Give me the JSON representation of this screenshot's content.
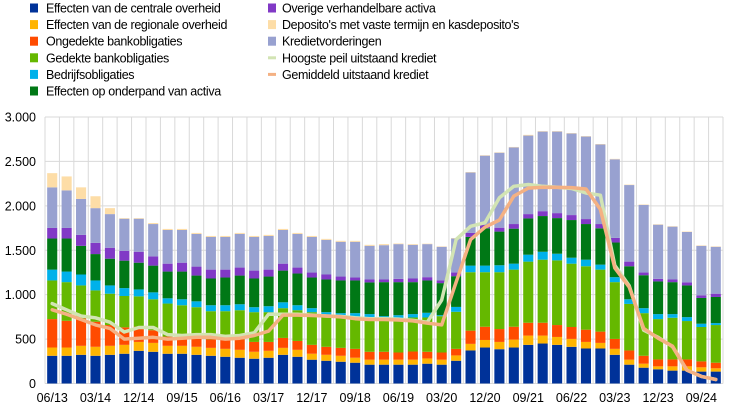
{
  "chart_data": {
    "type": "bar",
    "stacked": true,
    "title": "",
    "xlabel": "",
    "ylabel": "",
    "ylim": [
      0,
      3000
    ],
    "yticks": [
      0,
      500,
      1000,
      1500,
      2000,
      2500,
      3000
    ],
    "ytick_labels": [
      "0",
      "500",
      "1.000",
      "1.500",
      "2.000",
      "2.500",
      "3.000"
    ],
    "grid": true,
    "legend_placement": "top",
    "categories": [
      "06/13",
      "09/13",
      "12/13",
      "03/14",
      "06/14",
      "09/14",
      "12/14",
      "03/15",
      "06/15",
      "09/15",
      "12/15",
      "03/16",
      "06/16",
      "09/16",
      "12/16",
      "03/17",
      "06/17",
      "09/17",
      "12/17",
      "03/18",
      "06/18",
      "09/18",
      "12/18",
      "03/19",
      "06/19",
      "09/19",
      "12/19",
      "03/20",
      "06/20",
      "09/20",
      "12/20",
      "03/21",
      "06/21",
      "09/21",
      "12/21",
      "03/22",
      "06/22",
      "09/22",
      "12/22",
      "03/23",
      "06/23",
      "09/23",
      "12/23",
      "03/24",
      "06/24",
      "09/24",
      "12/24"
    ],
    "xtick_labels": [
      "06/13",
      "03/14",
      "12/14",
      "09/15",
      "06/16",
      "03/17",
      "12/17",
      "09/18",
      "06/19",
      "03/20",
      "12/20",
      "09/21",
      "06/22",
      "03/23",
      "12/23",
      "09/24"
    ],
    "series": [
      {
        "name": "Effecten van de centrale overheid",
        "color": "#003299",
        "values": [
          312,
          312,
          323,
          312,
          323,
          335,
          368,
          357,
          335,
          335,
          323,
          312,
          301,
          290,
          279,
          290,
          323,
          301,
          268,
          256,
          245,
          234,
          212,
          212,
          212,
          212,
          223,
          212,
          256,
          372,
          405,
          386,
          405,
          435,
          450,
          435,
          413,
          394,
          394,
          323,
          212,
          178,
          160,
          145,
          145,
          134,
          134
        ]
      },
      {
        "name": "Effecten van de regionale overheid",
        "color": "#FFB400",
        "values": [
          93,
          93,
          101,
          101,
          101,
          100,
          100,
          100,
          89,
          89,
          90,
          89,
          89,
          89,
          78,
          78,
          78,
          78,
          67,
          67,
          67,
          56,
          56,
          56,
          56,
          56,
          59,
          56,
          60,
          74,
          85,
          82,
          89,
          104,
          89,
          89,
          89,
          74,
          63,
          67,
          56,
          45,
          33,
          48,
          48,
          48,
          37
        ]
      },
      {
        "name": "Ongedekte bankobligaties",
        "color": "#FF4B00",
        "values": [
          320,
          301,
          308,
          282,
          234,
          197,
          172,
          143,
          104,
          96,
          107,
          97,
          108,
          119,
          111,
          100,
          112,
          100,
          100,
          90,
          89,
          100,
          89,
          89,
          81,
          92,
          75,
          81,
          74,
          149,
          149,
          145,
          145,
          145,
          145,
          134,
          134,
          138,
          127,
          112,
          104,
          89,
          78,
          78,
          78,
          67,
          63
        ]
      },
      {
        "name": "Gedekte bankobligaties",
        "color": "#65B800",
        "values": [
          435,
          435,
          372,
          353,
          353,
          353,
          341,
          348,
          372,
          361,
          339,
          316,
          316,
          327,
          335,
          335,
          335,
          346,
          368,
          356,
          357,
          357,
          379,
          357,
          365,
          383,
          386,
          409,
          417,
          658,
          614,
          640,
          643,
          688,
          710,
          728,
          713,
          714,
          698,
          639,
          524,
          480,
          454,
          469,
          432,
          387,
          424
        ]
      },
      {
        "name": "Bedrijfsobligaties",
        "color": "#00B1EA",
        "values": [
          122,
          119,
          123,
          112,
          93,
          89,
          78,
          78,
          59,
          67,
          66,
          67,
          67,
          67,
          56,
          67,
          66,
          56,
          45,
          34,
          34,
          45,
          45,
          44,
          55,
          38,
          53,
          11,
          55,
          74,
          74,
          78,
          67,
          78,
          89,
          75,
          67,
          74,
          56,
          56,
          52,
          56,
          56,
          41,
          44,
          37,
          22
        ]
      },
      {
        "name": "Effecten op onderpand van activa",
        "color": "#007816",
        "values": [
          350,
          372,
          323,
          297,
          301,
          309,
          301,
          301,
          301,
          312,
          290,
          301,
          312,
          323,
          323,
          334,
          357,
          357,
          345,
          368,
          368,
          368,
          357,
          383,
          372,
          360,
          364,
          361,
          346,
          323,
          420,
          379,
          394,
          408,
          402,
          401,
          424,
          401,
          409,
          390,
          372,
          371,
          368,
          360,
          357,
          290,
          294
        ]
      },
      {
        "name": "Overige verhandelbare activa",
        "color": "#8139C6",
        "values": [
          119,
          119,
          123,
          126,
          123,
          111,
          123,
          104,
          89,
          100,
          101,
          100,
          89,
          90,
          89,
          78,
          78,
          67,
          56,
          56,
          44,
          33,
          33,
          30,
          37,
          41,
          37,
          30,
          41,
          45,
          37,
          44,
          52,
          49,
          55,
          56,
          56,
          56,
          48,
          52,
          52,
          30,
          29,
          30,
          34,
          30,
          37
        ]
      },
      {
        "name": "Kredietvorderingen",
        "color": "#98A1D0",
        "values": [
          457,
          423,
          405,
          391,
          379,
          361,
          372,
          364,
          379,
          368,
          368,
          368,
          368,
          379,
          379,
          379,
          379,
          379,
          401,
          390,
          391,
          402,
          379,
          386,
          391,
          379,
          372,
          379,
          383,
          680,
          781,
          844,
          863,
          884,
          896,
          918,
          918,
          929,
          896,
          885,
          862,
          762,
          610,
          595,
          568,
          557,
          528
        ]
      },
      {
        "name": "Deposito's met vaste termijn en kasdeposito's",
        "color": "#FDDDA7",
        "values": [
          160,
          157,
          130,
          134,
          67,
          7,
          7,
          11,
          12,
          12,
          11,
          11,
          11,
          11,
          11,
          12,
          12,
          11,
          11,
          11,
          11,
          11,
          11,
          12,
          7,
          8,
          5,
          5,
          5,
          5,
          5,
          5,
          5,
          8,
          5,
          5,
          5,
          5,
          5,
          5,
          5,
          5,
          5,
          5,
          5,
          5,
          5
        ]
      }
    ],
    "lines": [
      {
        "name": "Hoogste peil uitstaand krediet",
        "color": "#D2E4B4",
        "values": [
          900,
          830,
          760,
          740,
          690,
          580,
          630,
          630,
          550,
          540,
          550,
          550,
          530,
          540,
          570,
          780,
          780,
          780,
          770,
          760,
          755,
          740,
          730,
          730,
          725,
          710,
          690,
          940,
          1620,
          1770,
          1810,
          2090,
          2220,
          2240,
          2220,
          2210,
          2195,
          2145,
          2120,
          1330,
          1100,
          600,
          520,
          415,
          150,
          80,
          45
        ]
      },
      {
        "name": "Gemiddeld uitstaand krediet",
        "color": "#F4B183",
        "values": [
          830,
          780,
          720,
          660,
          620,
          500,
          510,
          520,
          500,
          510,
          520,
          520,
          500,
          510,
          540,
          590,
          770,
          770,
          765,
          760,
          750,
          730,
          720,
          720,
          715,
          705,
          680,
          660,
          1140,
          1620,
          1760,
          1840,
          2110,
          2200,
          2210,
          2208,
          2205,
          2190,
          1960,
          1300,
          1085,
          620,
          510,
          420,
          150,
          80,
          45
        ]
      }
    ],
    "legend_left_order": [
      0,
      1,
      2,
      3,
      4,
      5
    ],
    "legend_right_order": [
      6,
      8,
      7,
      "line0",
      "line1"
    ]
  }
}
